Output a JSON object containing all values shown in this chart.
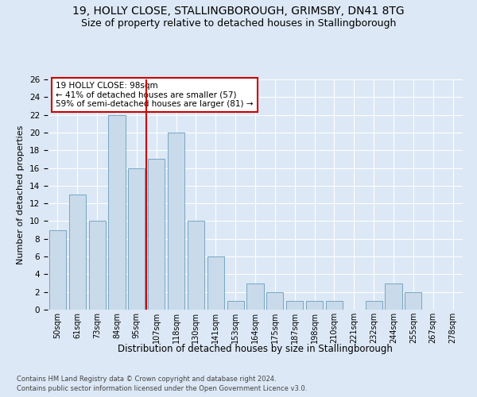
{
  "title1": "19, HOLLY CLOSE, STALLINGBOROUGH, GRIMSBY, DN41 8TG",
  "title2": "Size of property relative to detached houses in Stallingborough",
  "xlabel": "Distribution of detached houses by size in Stallingborough",
  "ylabel": "Number of detached properties",
  "footer1": "Contains HM Land Registry data © Crown copyright and database right 2024.",
  "footer2": "Contains public sector information licensed under the Open Government Licence v3.0.",
  "bar_labels": [
    "50sqm",
    "61sqm",
    "73sqm",
    "84sqm",
    "95sqm",
    "107sqm",
    "118sqm",
    "130sqm",
    "141sqm",
    "153sqm",
    "164sqm",
    "175sqm",
    "187sqm",
    "198sqm",
    "210sqm",
    "221sqm",
    "232sqm",
    "244sqm",
    "255sqm",
    "267sqm",
    "278sqm"
  ],
  "bar_values": [
    9,
    13,
    10,
    22,
    16,
    17,
    20,
    10,
    6,
    1,
    3,
    2,
    1,
    1,
    1,
    0,
    1,
    3,
    2,
    0,
    0
  ],
  "bar_color": "#c9daea",
  "bar_edge_color": "#6a9dbb",
  "vline_x": 4.5,
  "vline_color": "#cc0000",
  "annotation_text": "19 HOLLY CLOSE: 98sqm\n← 41% of detached houses are smaller (57)\n59% of semi-detached houses are larger (81) →",
  "annotation_box_color": "#ffffff",
  "annotation_box_edge": "#cc0000",
  "ylim": [
    0,
    26
  ],
  "yticks": [
    0,
    2,
    4,
    6,
    8,
    10,
    12,
    14,
    16,
    18,
    20,
    22,
    24,
    26
  ],
  "bg_color": "#dce8f5",
  "grid_color": "#ffffff",
  "title_fontsize": 10,
  "subtitle_fontsize": 9
}
